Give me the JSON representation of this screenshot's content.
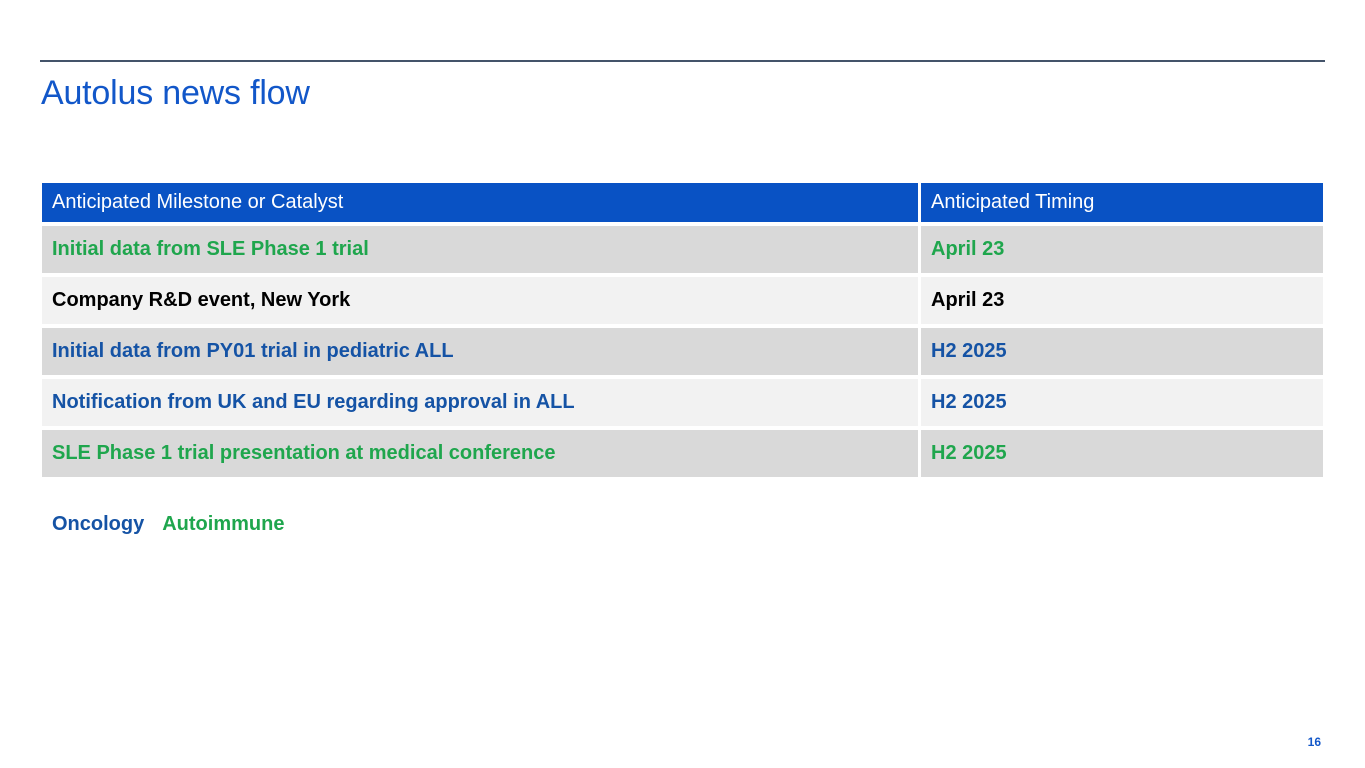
{
  "slide": {
    "title": "Autolus news flow",
    "page_number": "16",
    "colors": {
      "title_blue": "#1257C9",
      "header_bg": "#0952C4",
      "header_text": "#FFFFFF",
      "oncology_blue": "#1553A5",
      "autoimmune_green": "#1FA64D",
      "neutral_black": "#000000",
      "row_gray": "#D9D9D9",
      "row_light": "#F2F2F2",
      "rule_color": "#44546A"
    }
  },
  "table": {
    "columns": [
      "Anticipated Milestone or Catalyst",
      "Anticipated Timing"
    ],
    "rows": [
      {
        "milestone": "Initial data from SLE Phase 1 trial",
        "timing": "April 23",
        "category": "autoimmune"
      },
      {
        "milestone": "Company R&D event, New York",
        "timing": "April 23",
        "category": "neutral"
      },
      {
        "milestone": "Initial data from PY01 trial in pediatric ALL",
        "timing": "H2 2025",
        "category": "oncology"
      },
      {
        "milestone": "Notification from UK and EU regarding approval in ALL",
        "timing": "H2 2025",
        "category": "oncology"
      },
      {
        "milestone": "SLE Phase 1 trial presentation at medical conference",
        "timing": "H2 2025",
        "category": "autoimmune"
      }
    ]
  },
  "legend": {
    "items": [
      {
        "label": "Oncology",
        "category": "oncology"
      },
      {
        "label": "Autoimmune",
        "category": "autoimmune"
      }
    ]
  }
}
